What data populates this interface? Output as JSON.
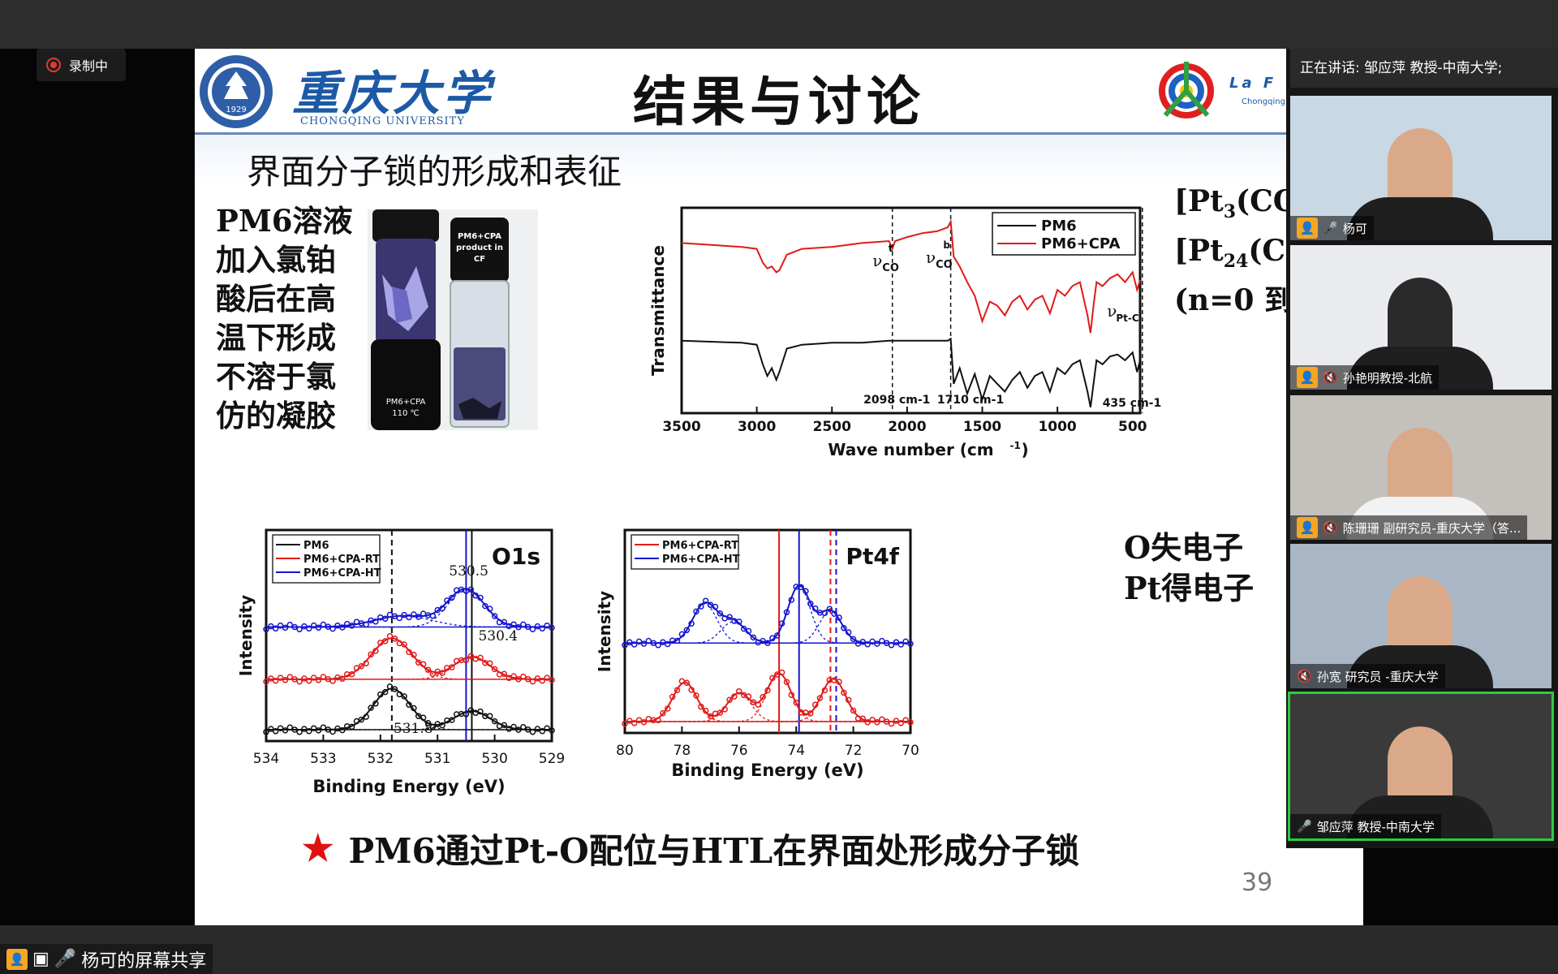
{
  "recording": {
    "label": "录制中"
  },
  "share_bar": {
    "label": "杨可的屏幕共享"
  },
  "speaking": {
    "label": "正在讲话: 邹应萍 教授-中南大学;"
  },
  "participants": [
    {
      "name": "杨可",
      "muted": false,
      "bg": "#c8d8e4"
    },
    {
      "name": "孙艳明教授-北航",
      "muted": true,
      "bg": "#e9ebef"
    },
    {
      "name": "陈珊珊 副研究员-重庆大学（答...",
      "muted": true,
      "bg": "#c4c1bd"
    },
    {
      "name": "孙宽 研究员 -重庆大学",
      "muted": true,
      "bg": "#a8b6c6"
    },
    {
      "name": "邹应萍 教授-中南大学",
      "muted": false,
      "bg": "#3a3a3a"
    }
  ],
  "slide": {
    "logo_cn": "重庆大学",
    "logo_en": "CHONGQING UNIVERSITY",
    "seal_year": "1929",
    "lab_logo": "La F",
    "lab_sub": "Chongqing",
    "title": "结果与讨论",
    "section": "界面分子锁的形成和表征",
    "left_lines": [
      "PM6溶液",
      "加入氯铂",
      "酸后在高",
      "温下形成",
      "不溶于氯",
      "仿的凝胶"
    ],
    "photo_label_1": "PM6+CPA",
    "photo_label_1b": "110 ℃",
    "photo_label_2": "PM6+CPA",
    "photo_label_2b": "product in",
    "photo_label_2c": "CF",
    "right_lines": [
      "[Pt",
      "[Pt",
      "(n=0 到 -"
    ],
    "oe_lines": [
      "O失电子",
      "Pt得电子"
    ],
    "conclusion": "PM6通过Pt-O配位与HTL在界面处形成分子锁",
    "page": "39"
  },
  "chart_data": [
    {
      "type": "line",
      "name": "ir",
      "xlabel": "Wave number (cm-1)",
      "ylabel": "Transmittance",
      "xlim": [
        3500,
        450
      ],
      "xticks": [
        3500,
        3000,
        2500,
        2000,
        1500,
        1000,
        500
      ],
      "legend": [
        "PM6",
        "PM6+CPA"
      ],
      "annotations": [
        "νCO t",
        "νCO b",
        "νPt-C",
        "2098 cm-1",
        "1710 cm-1",
        "435 cm-1"
      ],
      "vlines": [
        2098,
        1710,
        435
      ],
      "series": [
        {
          "name": "PM6+CPA",
          "color": "#e01a1a",
          "x": [
            3500,
            3100,
            3000,
            2960,
            2930,
            2900,
            2870,
            2850,
            2800,
            2700,
            2500,
            2300,
            2120,
            2098,
            2080,
            2000,
            1900,
            1800,
            1730,
            1710,
            1690,
            1650,
            1600,
            1550,
            1500,
            1450,
            1400,
            1350,
            1300,
            1250,
            1200,
            1150,
            1100,
            1050,
            1000,
            950,
            900,
            850,
            800,
            780,
            760,
            740,
            700,
            650,
            600,
            550,
            500,
            470,
            450
          ],
          "y": [
            0.82,
            0.8,
            0.79,
            0.72,
            0.69,
            0.7,
            0.67,
            0.68,
            0.76,
            0.79,
            0.8,
            0.82,
            0.83,
            0.79,
            0.83,
            0.85,
            0.87,
            0.88,
            0.9,
            0.93,
            0.75,
            0.7,
            0.62,
            0.55,
            0.42,
            0.52,
            0.5,
            0.45,
            0.52,
            0.55,
            0.48,
            0.53,
            0.55,
            0.46,
            0.58,
            0.55,
            0.6,
            0.62,
            0.45,
            0.36,
            0.5,
            0.62,
            0.6,
            0.64,
            0.66,
            0.62,
            0.67,
            0.58,
            0.63
          ]
        },
        {
          "name": "PM6",
          "color": "#111111",
          "x": [
            3500,
            3100,
            3000,
            2960,
            2930,
            2900,
            2870,
            2850,
            2800,
            2700,
            2500,
            2300,
            2120,
            2098,
            2080,
            2000,
            1900,
            1800,
            1730,
            1710,
            1690,
            1650,
            1600,
            1550,
            1500,
            1450,
            1400,
            1350,
            1300,
            1250,
            1200,
            1150,
            1100,
            1050,
            1000,
            950,
            900,
            850,
            800,
            780,
            760,
            740,
            700,
            650,
            600,
            550,
            500,
            470,
            450
          ],
          "y": [
            0.32,
            0.31,
            0.3,
            0.2,
            0.14,
            0.18,
            0.12,
            0.16,
            0.28,
            0.3,
            0.31,
            0.31,
            0.32,
            0.32,
            0.32,
            0.32,
            0.32,
            0.32,
            0.32,
            0.33,
            0.1,
            0.18,
            0.05,
            0.15,
            0.02,
            0.14,
            0.1,
            0.06,
            0.12,
            0.16,
            0.08,
            0.14,
            0.16,
            0.06,
            0.18,
            0.15,
            0.2,
            0.22,
            0.06,
            -0.02,
            0.1,
            0.22,
            0.2,
            0.24,
            0.25,
            0.22,
            0.26,
            0.16,
            0.22
          ]
        }
      ]
    },
    {
      "type": "scatter",
      "name": "o1s",
      "title": "O1s",
      "xlabel": "Binding Energy (eV)",
      "ylabel": "Intensity",
      "xlim": [
        534,
        529
      ],
      "xticks": [
        534,
        533,
        532,
        531,
        530,
        529
      ],
      "legend": [
        "PM6",
        "PM6+CPA-RT",
        "PM6+CPA-HT"
      ],
      "annotations": [
        "530.5",
        "530.4",
        "531.8"
      ],
      "vlines": [
        {
          "x": 531.8,
          "color": "#111111",
          "dash": true
        },
        {
          "x": 530.5,
          "color": "#1515d0",
          "dash": false
        },
        {
          "x": 530.4,
          "color": "#111111",
          "dash": false
        }
      ],
      "series": [
        {
          "name": "PM6",
          "color": "#111111",
          "baseline": 0.0,
          "peaks": [
            [
              531.8,
              0.22,
              0.45
            ],
            [
              530.4,
              0.1,
              0.45
            ]
          ]
        },
        {
          "name": "PM6+CPA-RT",
          "color": "#e01a1a",
          "baseline": 0.27,
          "peaks": [
            [
              531.8,
              0.22,
              0.5
            ],
            [
              530.4,
              0.12,
              0.45
            ]
          ]
        },
        {
          "name": "PM6+CPA-HT",
          "color": "#1515d0",
          "baseline": 0.55,
          "peaks": [
            [
              531.6,
              0.06,
              0.7
            ],
            [
              530.5,
              0.2,
              0.45
            ]
          ]
        }
      ]
    },
    {
      "type": "scatter",
      "name": "pt4f",
      "title": "Pt4f",
      "xlabel": "Binding Energy (eV)",
      "ylabel": "Intensity",
      "xlim": [
        80,
        70
      ],
      "xticks": [
        80,
        78,
        76,
        74,
        72,
        70
      ],
      "legend": [
        "PM6+CPA-RT",
        "PM6+CPA-HT"
      ],
      "vlines": [
        {
          "x": 74.6,
          "color": "#e01a1a",
          "dash": false
        },
        {
          "x": 73.9,
          "color": "#1515d0",
          "dash": false
        },
        {
          "x": 72.8,
          "color": "#e01a1a",
          "dash": true
        },
        {
          "x": 72.6,
          "color": "#1515d0",
          "dash": true
        }
      ],
      "series": [
        {
          "name": "PM6+CPA-RT",
          "color": "#e01a1a",
          "baseline": 0.0,
          "peaks": [
            [
              77.9,
              0.22,
              0.6
            ],
            [
              76.0,
              0.16,
              0.6
            ],
            [
              74.6,
              0.27,
              0.6
            ],
            [
              72.7,
              0.24,
              0.6
            ]
          ]
        },
        {
          "name": "PM6+CPA-HT",
          "color": "#1515d0",
          "baseline": 0.44,
          "peaks": [
            [
              77.2,
              0.22,
              0.6
            ],
            [
              76.2,
              0.12,
              0.6
            ],
            [
              73.9,
              0.32,
              0.55
            ],
            [
              72.8,
              0.18,
              0.55
            ]
          ]
        }
      ]
    }
  ]
}
